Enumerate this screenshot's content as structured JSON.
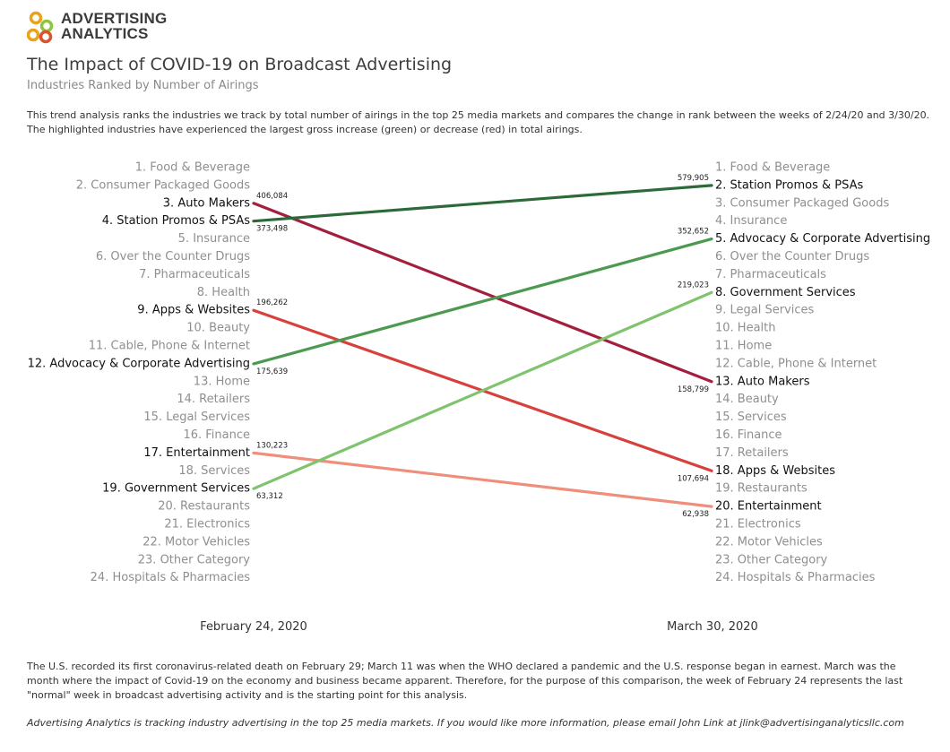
{
  "logo": {
    "line1": "ADVERTISING",
    "line2": "ANALYTICS",
    "colors": [
      "#e8a21c",
      "#8cc63f",
      "#e8a21c",
      "#d9532c"
    ]
  },
  "header": {
    "title": "The Impact of COVID-19 on Broadcast Advertising",
    "subtitle": "Industries Ranked by Number of Airings",
    "intro": "This trend analysis ranks the industries we track by total number of airings in the top 25 media markets and compares the change in rank between the weeks of 2/24/20 and 3/30/20. The highlighted industries have experienced the largest gross increase (green) or decrease (red) in total airings."
  },
  "chart_data": {
    "type": "line",
    "x": [
      "February 24, 2020",
      "March 30, 2020"
    ],
    "left_ranking": [
      "1. Food & Beverage",
      "2. Consumer Packaged Goods",
      "3. Auto Makers",
      "4. Station Promos & PSAs",
      "5. Insurance",
      "6. Over the Counter Drugs",
      "7. Pharmaceuticals",
      "8. Health",
      "9. Apps & Websites",
      "10. Beauty",
      "11. Cable, Phone & Internet",
      "12. Advocacy & Corporate Advertising",
      "13. Home",
      "14. Retailers",
      "15. Legal Services",
      "16. Finance",
      "17. Entertainment",
      "18. Services",
      "19. Government Services",
      "20. Restaurants",
      "21. Electronics",
      "22. Motor Vehicles",
      "23. Other Category",
      "24. Hospitals & Pharmacies"
    ],
    "right_ranking": [
      "1. Food & Beverage",
      "2. Station Promos & PSAs",
      "3. Consumer Packaged Goods",
      "4. Insurance",
      "5. Advocacy & Corporate Advertising",
      "6. Over the Counter Drugs",
      "7. Pharmaceuticals",
      "8. Government Services",
      "9. Legal Services",
      "10. Health",
      "11. Home",
      "12. Cable, Phone & Internet",
      "13. Auto Makers",
      "14. Beauty",
      "15. Services",
      "16. Finance",
      "17. Retailers",
      "18. Apps & Websites",
      "19. Restaurants",
      "20. Entertainment",
      "21. Electronics",
      "22. Motor Vehicles",
      "23. Other Category",
      "24. Hospitals & Pharmacies"
    ],
    "highlighted": [
      {
        "from_rank": 3,
        "to_rank": 13,
        "from_value": "406,084",
        "to_value": "158,799",
        "color": "#a31f3d"
      },
      {
        "from_rank": 4,
        "to_rank": 2,
        "from_value": "373,498",
        "to_value": "579,905",
        "color": "#2d6a3a"
      },
      {
        "from_rank": 9,
        "to_rank": 18,
        "from_value": "196,262",
        "to_value": "107,694",
        "color": "#d8403c"
      },
      {
        "from_rank": 12,
        "to_rank": 5,
        "from_value": "175,639",
        "to_value": "352,652",
        "color": "#4c9a50"
      },
      {
        "from_rank": 17,
        "to_rank": 20,
        "from_value": "130,223",
        "to_value": "62,938",
        "color": "#ef8e7a"
      },
      {
        "from_rank": 19,
        "to_rank": 8,
        "from_value": "63,312",
        "to_value": "219,023",
        "color": "#80c36e"
      }
    ]
  },
  "notes": {
    "context": "The U.S. recorded its first coronavirus-related death on February 29; March 11 was when the WHO declared a pandemic and the U.S. response began in earnest. March was the month where the impact of Covid-19 on the economy and business became apparent. Therefore, for the purpose of this comparison, the week of February 24 represents the last \"normal\" week in broadcast advertising activity and is the starting point for this analysis.",
    "footer": "Advertising Analytics is tracking industry advertising in the top 25 media markets. If you would like more information, please email John Link at jlink@advertisinganalyticsllc.com"
  }
}
